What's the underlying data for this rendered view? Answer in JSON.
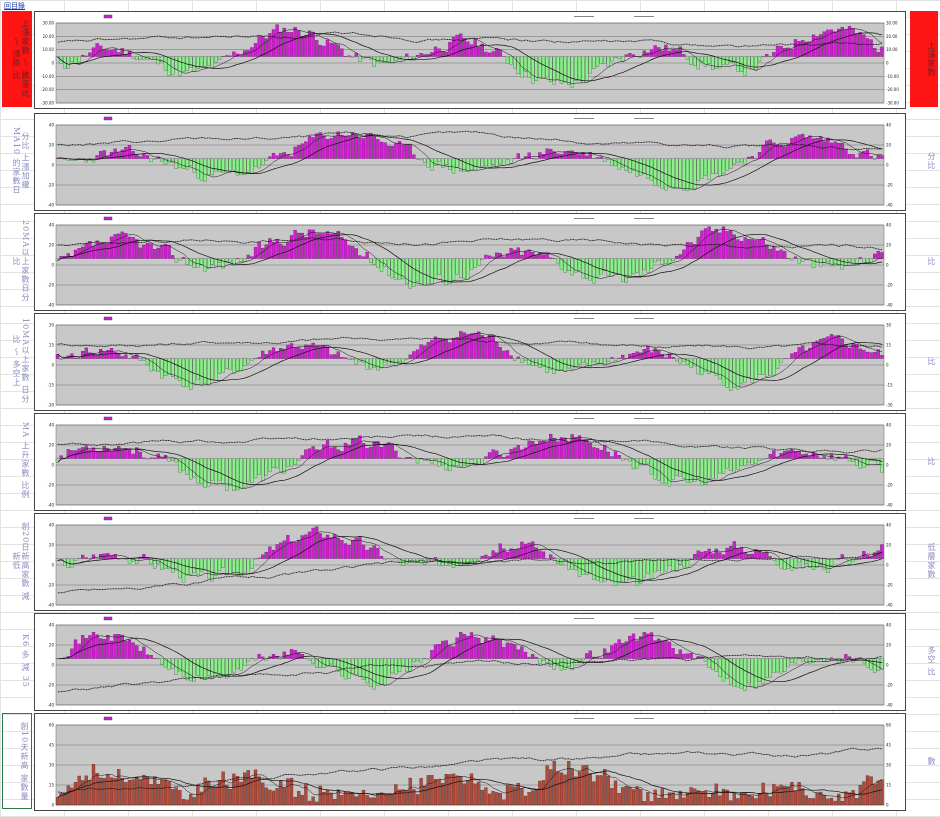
{
  "sheet": {
    "link_text": "回目錄",
    "left_labels": [
      {
        "text": "上漲家數 〜 騰落比 〜 漲跌 比",
        "style": "red"
      },
      {
        "text": "分比 上漲加權 MA10 的家數日",
        "style": "plain"
      },
      {
        "text": "20MA以上家數日分比",
        "style": "plain"
      },
      {
        "text": "10MA以上家數 日分比 〜 多空上",
        "style": "plain"
      },
      {
        "text": "MA 上升家數 比例",
        "style": "plain"
      },
      {
        "text": "創20日新高家數 減 新低",
        "style": "plain"
      },
      {
        "text": "K6 多 減 35",
        "style": "plain"
      },
      {
        "text": "創10天新高 家數量",
        "style": "boxed"
      }
    ],
    "right_labels": [
      {
        "text": "上漲家數",
        "style": "red"
      },
      {
        "text": "分比",
        "style": "plain"
      },
      {
        "text": "比",
        "style": "plain"
      },
      {
        "text": "比",
        "style": "plain"
      },
      {
        "text": "比",
        "style": "plain"
      },
      {
        "text": "低層家數",
        "style": "plain"
      },
      {
        "text": "多空 比",
        "style": "plain"
      },
      {
        "text": "數",
        "style": "plain"
      }
    ]
  },
  "colors": {
    "positive": "#d21ed2",
    "negative": "#8cf08c",
    "volume": "#b04a3a",
    "plot_bg": "#c8c8c8",
    "line": "#111111"
  },
  "chart_data": [
    {
      "type": "bar",
      "id": "p1",
      "bars": "signed",
      "seed": 11,
      "ylim": [
        -30,
        30
      ],
      "yticks": [
        "30.00",
        "20.00",
        "10.00",
        "0",
        "-10.00",
        "-20.00",
        "-30.00"
      ]
    },
    {
      "type": "bar",
      "id": "p2",
      "bars": "signed",
      "seed": 23,
      "ylim": [
        -40,
        40
      ],
      "yticks": [
        "40",
        "20",
        "0",
        "-20",
        "-40"
      ]
    },
    {
      "type": "bar",
      "id": "p3",
      "bars": "signed",
      "seed": 37,
      "ylim": [
        -40,
        40
      ],
      "yticks": [
        "40",
        "20",
        "0",
        "-20",
        "-40"
      ]
    },
    {
      "type": "bar",
      "id": "p4",
      "bars": "signed",
      "seed": 41,
      "ylim": [
        -30,
        30
      ],
      "yticks": [
        "30",
        "15",
        "0",
        "-15",
        "-30"
      ]
    },
    {
      "type": "bar",
      "id": "p5",
      "bars": "signed",
      "seed": 53,
      "ylim": [
        -40,
        40
      ],
      "yticks": [
        "40",
        "20",
        "0",
        "-20",
        "-40"
      ]
    },
    {
      "type": "bar",
      "id": "p6",
      "bars": "signed",
      "seed": 67,
      "ylim": [
        -40,
        40
      ],
      "yticks": [
        "40",
        "20",
        "0",
        "-20",
        "-40"
      ]
    },
    {
      "type": "bar",
      "id": "p7",
      "bars": "signed",
      "seed": 71,
      "ylim": [
        -40,
        40
      ],
      "yticks": [
        "40",
        "20",
        "0",
        "-20",
        "-40"
      ]
    },
    {
      "type": "bar",
      "id": "p8",
      "bars": "positive",
      "seed": 83,
      "ylim": [
        0,
        60
      ],
      "yticks": [
        "60",
        "45",
        "30",
        "15",
        "0"
      ]
    }
  ]
}
